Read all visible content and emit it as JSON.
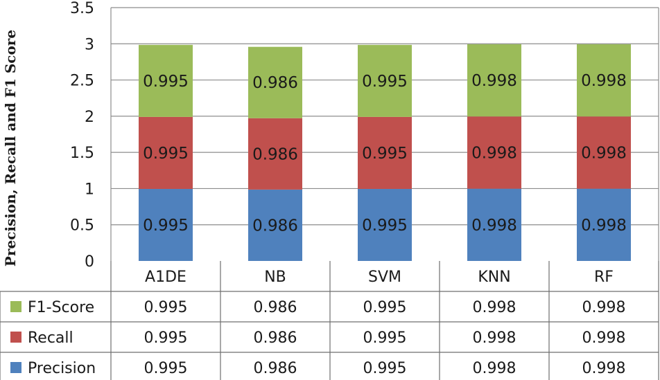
{
  "chart_data": {
    "type": "bar",
    "stacked": true,
    "categories": [
      "A1DE",
      "NB",
      "SVM",
      "KNN",
      "RF"
    ],
    "series": [
      {
        "name": "Precision",
        "values": [
          0.995,
          0.986,
          0.995,
          0.998,
          0.998
        ],
        "color": "#4F81BD"
      },
      {
        "name": "Recall",
        "values": [
          0.995,
          0.986,
          0.995,
          0.998,
          0.998
        ],
        "color": "#C0504D"
      },
      {
        "name": "F1-Score",
        "values": [
          0.995,
          0.986,
          0.995,
          0.998,
          0.998
        ],
        "color": "#9BBB59"
      }
    ],
    "ylabel": "Precision, Recall and F1 Score",
    "ylim": [
      0,
      3.5
    ],
    "yticks": [
      "0",
      "0.5",
      "1",
      "1.5",
      "2",
      "2.5",
      "3",
      "3.5"
    ],
    "grid": true,
    "data_table": true,
    "table_row_order": [
      "F1-Score",
      "Recall",
      "Precision"
    ]
  }
}
